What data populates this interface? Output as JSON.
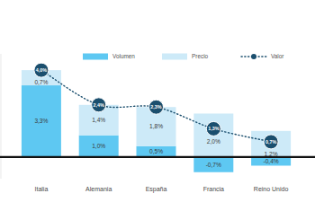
{
  "chart_data": {
    "type": "bar",
    "stacked": true,
    "data_labels": true,
    "tick_labels": "x",
    "legend": "top",
    "categories": [
      "Italia",
      "Alemania",
      "España",
      "Francia",
      "Reino Unido"
    ],
    "ylim": [
      -1,
      4.75
    ],
    "series": [
      {
        "name": "Volumen",
        "type": "bar",
        "color": "#5ec8f2",
        "values": [
          3.3,
          1.0,
          0.5,
          -0.7,
          -0.4
        ],
        "value_labels": [
          "3,3%",
          "1,0%",
          "0,5%",
          "-0,7%",
          "-0,4%"
        ]
      },
      {
        "name": "Precio",
        "type": "bar",
        "color": "#cdeaf8",
        "values": [
          0.7,
          1.4,
          1.8,
          2.0,
          1.2
        ],
        "value_labels": [
          "0,7%",
          "1,4%",
          "1,8%",
          "2,0%",
          "1,2%"
        ]
      },
      {
        "name": "Valor",
        "type": "line",
        "color": "#1b4f6e",
        "marker": "circle",
        "line_style": "dotted",
        "values": [
          4.0,
          2.4,
          2.3,
          1.3,
          0.7
        ],
        "value_labels": [
          "4,0%",
          "2,4%",
          "2,3%",
          "1,3%",
          "0,7%"
        ]
      }
    ]
  }
}
